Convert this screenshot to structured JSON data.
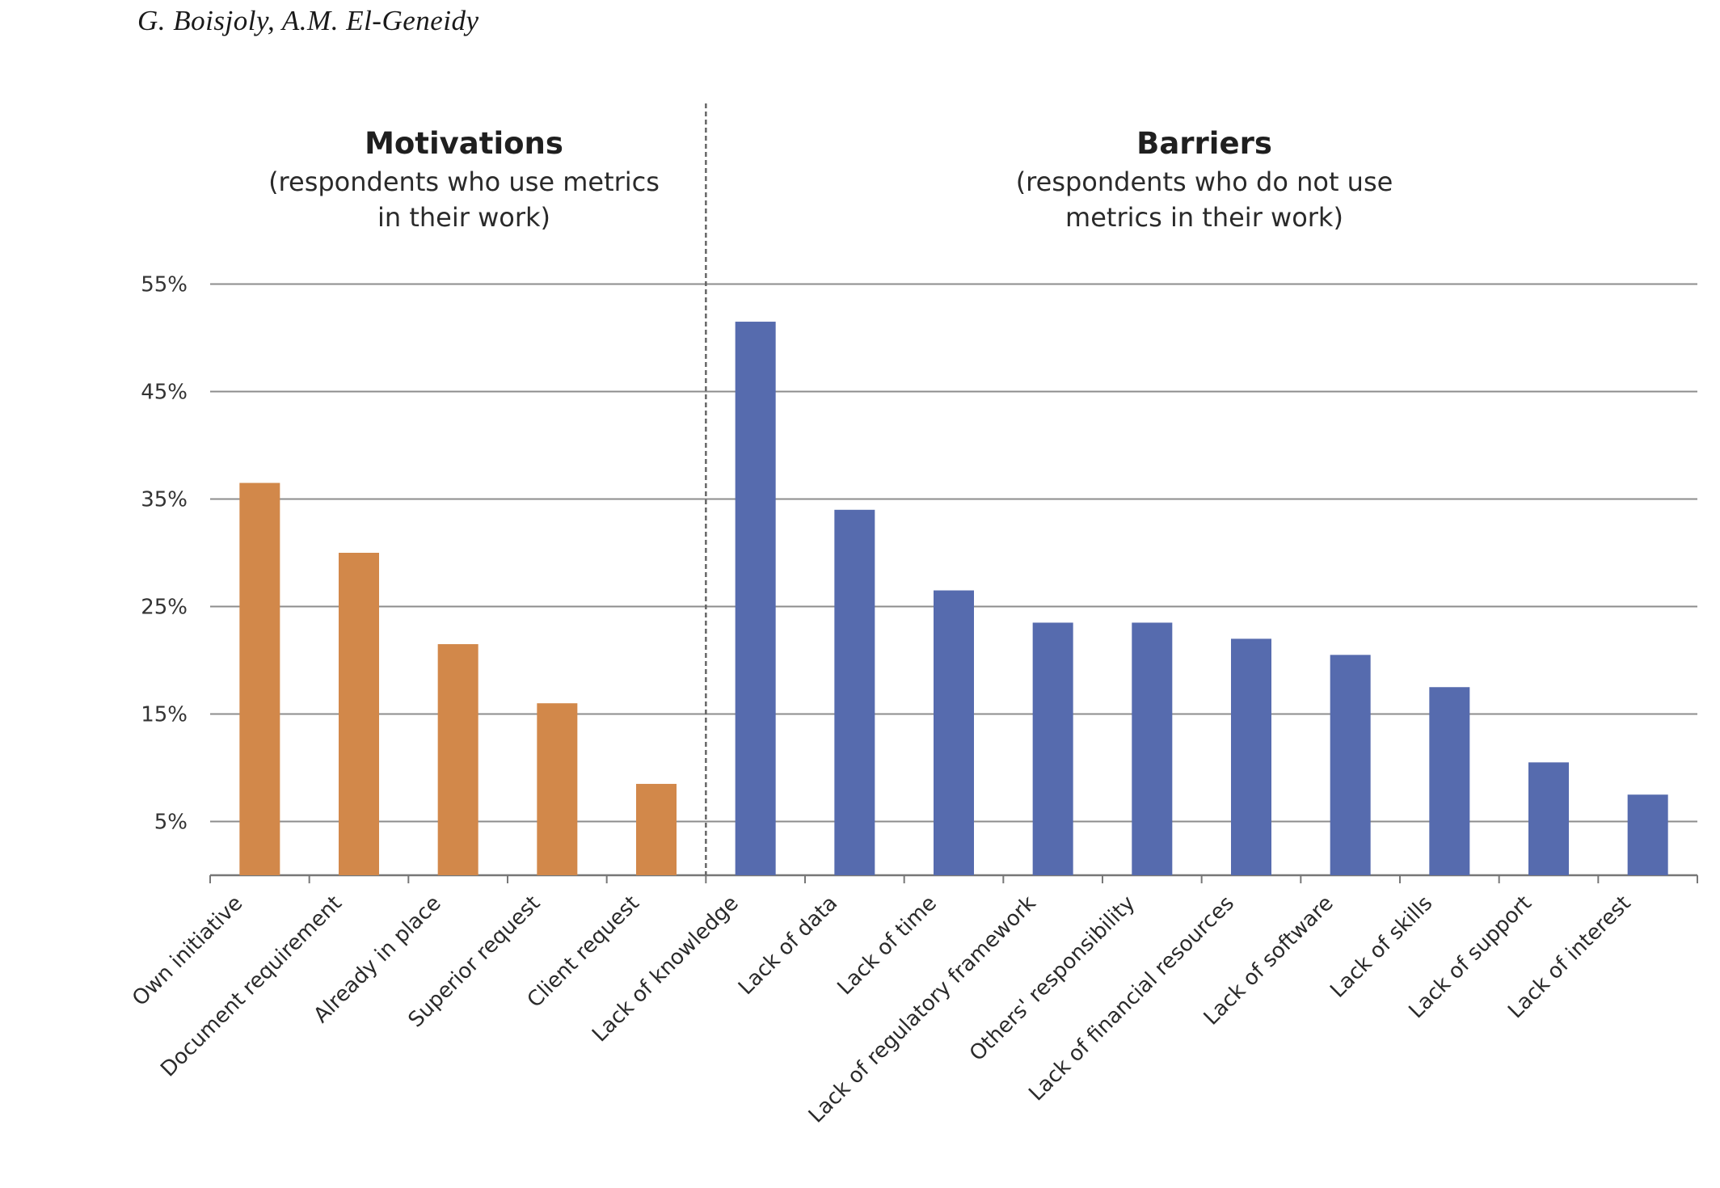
{
  "header": {
    "authors": "G. Boisjoly, A.M. El-Geneidy"
  },
  "chart_data": {
    "type": "bar",
    "colors": {
      "motivations": "#D2884A",
      "barriers": "#566BAE",
      "grid": "#8c8c8c",
      "divider": "#666666"
    },
    "y_ticks": [
      5,
      15,
      25,
      35,
      45,
      55
    ],
    "y_tick_labels": [
      "5%",
      "15%",
      "25%",
      "35%",
      "45%",
      "55%"
    ],
    "ylim": [
      0,
      55
    ],
    "grid": true,
    "groups": [
      {
        "title": "Motivations",
        "subtitle_lines": [
          "(respondents who use metrics",
          "in their work)"
        ],
        "categories": [
          "Own initiative",
          "Document requirement",
          "Already in place",
          "Superior request",
          "Client request"
        ],
        "values": [
          36.5,
          30,
          21.5,
          16,
          8.5
        ]
      },
      {
        "title": "Barriers",
        "subtitle_lines": [
          "(respondents who do not use",
          "metrics in their work)"
        ],
        "categories": [
          "Lack of knowledge",
          "Lack of data",
          "Lack of time",
          "Lack of regulatory framework",
          "Others' responsibility",
          "Lack of financial resources",
          "Lack of software",
          "Lack of skills",
          "Lack of support",
          "Lack of interest"
        ],
        "values": [
          51.5,
          34,
          26.5,
          23.5,
          23.5,
          22,
          20.5,
          17.5,
          10.5,
          7.5
        ]
      }
    ]
  }
}
